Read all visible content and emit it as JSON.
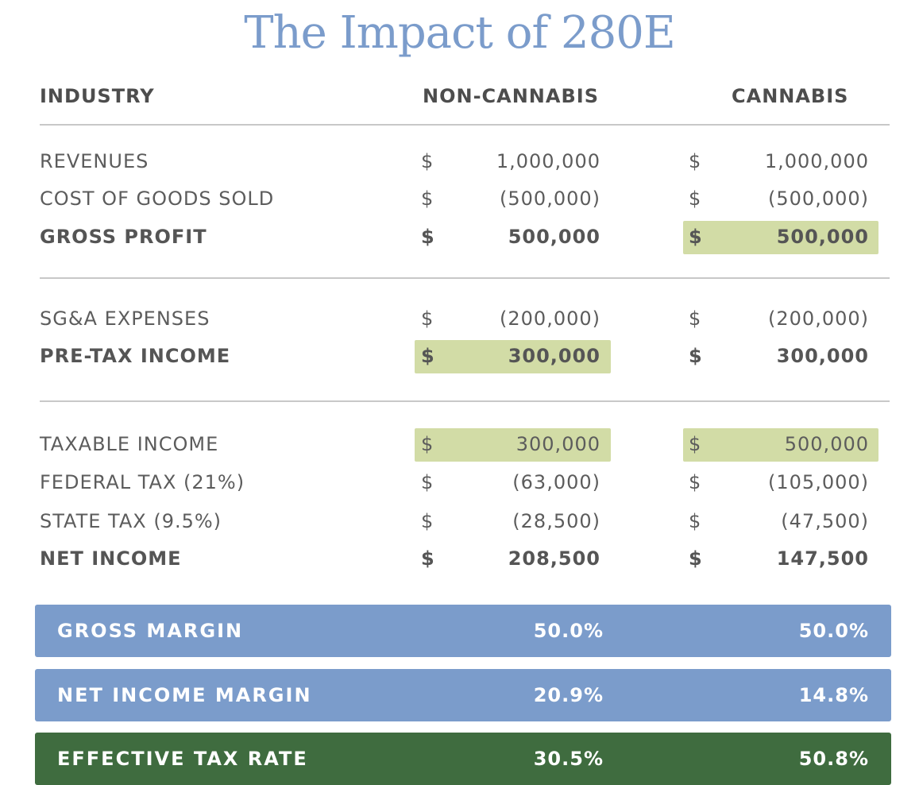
{
  "title": "The Impact of 280E",
  "headers": {
    "industry": "INDUSTRY",
    "non_cannabis": "NON-CANNABIS",
    "cannabis": "CANNABIS"
  },
  "currency_symbol": "$",
  "highlight_color": "#d2dca6",
  "rows": [
    {
      "label": "REVENUES",
      "non_cannabis": "1,000,000",
      "cannabis": "1,000,000"
    },
    {
      "label": "COST OF GOODS SOLD",
      "non_cannabis": "(500,000)",
      "cannabis": "(500,000)"
    },
    {
      "label": "GROSS PROFIT",
      "non_cannabis": "500,000",
      "cannabis": "500,000"
    },
    {
      "label": "SG&A EXPENSES",
      "non_cannabis": "(200,000)",
      "cannabis": "(200,000)"
    },
    {
      "label": "PRE-TAX INCOME",
      "non_cannabis": "300,000",
      "cannabis": "300,000"
    },
    {
      "label": "TAXABLE INCOME",
      "non_cannabis": "300,000",
      "cannabis": "500,000"
    },
    {
      "label": "FEDERAL TAX (21%)",
      "non_cannabis": "(63,000)",
      "cannabis": "(105,000)"
    },
    {
      "label": "STATE TAX (9.5%)",
      "non_cannabis": "(28,500)",
      "cannabis": "(47,500)"
    },
    {
      "label": "NET INCOME",
      "non_cannabis": "208,500",
      "cannabis": "147,500"
    }
  ],
  "summary": [
    {
      "label": "GROSS MARGIN",
      "non_cannabis": "50.0%",
      "cannabis": "50.0%",
      "color": "#7b9ccb"
    },
    {
      "label": "NET INCOME MARGIN",
      "non_cannabis": "20.9%",
      "cannabis": "14.8%",
      "color": "#7b9ccb"
    },
    {
      "label": "EFFECTIVE TAX RATE",
      "non_cannabis": "30.5%",
      "cannabis": "50.8%",
      "color": "#3f6c3f"
    }
  ]
}
